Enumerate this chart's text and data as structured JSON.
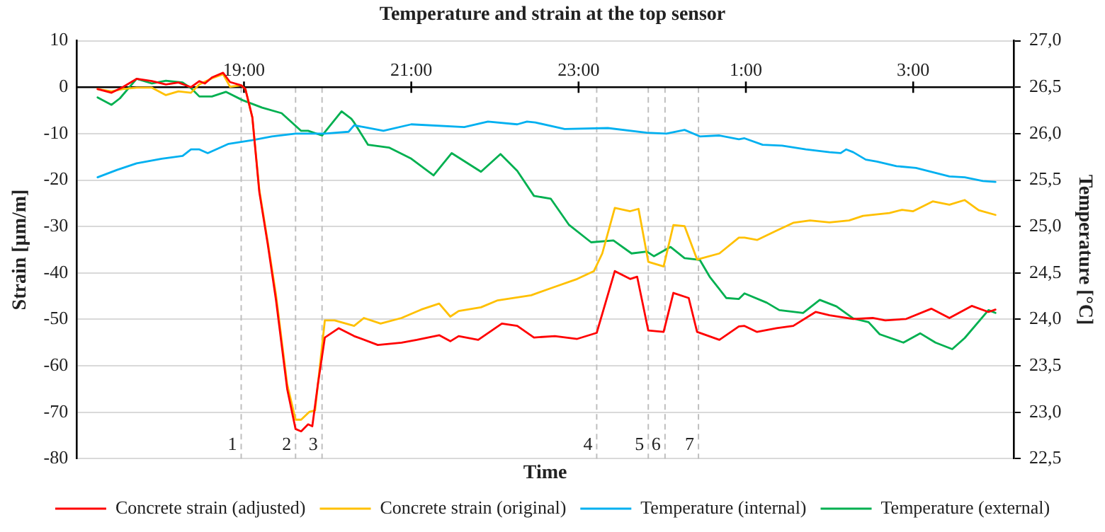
{
  "chart_data": {
    "type": "line",
    "title": "Temperature and strain at the top sensor",
    "xlabel": "Time",
    "ylabel": "Strain [µm/m]",
    "y2label": "Temperature [°C]",
    "xlim": [
      "--01-01T17:00",
      "--01-02T04:12"
    ],
    "xticks": [
      {
        "value": "--01-01T19:00",
        "label": "19:00"
      },
      {
        "value": "--01-01T21:00",
        "label": "21:00"
      },
      {
        "value": "--01-01T23:00",
        "label": "23:00"
      },
      {
        "value": "--01-02T01:00",
        "label": "1:00"
      },
      {
        "value": "--01-02T03:00",
        "label": "3:00"
      }
    ],
    "ylim": [
      -80,
      10
    ],
    "yticks": [
      -80,
      -70,
      -60,
      -50,
      -40,
      -30,
      -20,
      -10,
      0,
      10
    ],
    "y2lim": [
      22.5,
      27.0
    ],
    "y2ticks": [
      {
        "value": 22.5,
        "label": "22,5"
      },
      {
        "value": 23,
        "label": "23,0"
      },
      {
        "value": 23.5,
        "label": "23,5"
      },
      {
        "value": 24,
        "label": "24,0"
      },
      {
        "value": 24.5,
        "label": "24,5"
      },
      {
        "value": 25,
        "label": "25,0"
      },
      {
        "value": 25.5,
        "label": "25,5"
      },
      {
        "value": 26,
        "label": "26,0"
      },
      {
        "value": 26.5,
        "label": "26,5"
      },
      {
        "value": 27,
        "label": "27,0"
      }
    ],
    "grid": "y",
    "legend": "bottom",
    "line_style": "solid",
    "ref_lines": [
      {
        "axis": "x",
        "value": "--01-01T18:58",
        "color": "#bfbfbf",
        "line_style": "dashed"
      },
      {
        "axis": "x",
        "value": "--01-01T19:37",
        "color": "#bfbfbf",
        "line_style": "dashed"
      },
      {
        "axis": "x",
        "value": "--01-01T19:56",
        "color": "#bfbfbf",
        "line_style": "dashed"
      },
      {
        "axis": "x",
        "value": "--01-01T23:13",
        "color": "#bfbfbf",
        "line_style": "dashed"
      },
      {
        "axis": "x",
        "value": "--01-01T23:50",
        "color": "#bfbfbf",
        "line_style": "dashed"
      },
      {
        "axis": "x",
        "value": "--01-02T00:02",
        "color": "#bfbfbf",
        "line_style": "dashed"
      },
      {
        "axis": "x",
        "value": "--01-02T00:26",
        "color": "#bfbfbf",
        "line_style": "dashed"
      }
    ],
    "annotations": [
      {
        "text": "1",
        "x": "--01-01T18:58",
        "y": -77
      },
      {
        "text": "2",
        "x": "--01-01T19:37",
        "y": -77
      },
      {
        "text": "3",
        "x": "--01-01T19:56",
        "y": -77
      },
      {
        "text": "4",
        "x": "--01-01T23:13",
        "y": -77
      },
      {
        "text": "5",
        "x": "--01-01T23:50",
        "y": -77
      },
      {
        "text": "6",
        "x": "--01-02T00:02",
        "y": -77
      },
      {
        "text": "7",
        "x": "--01-02T00:26",
        "y": -77
      }
    ],
    "series": [
      {
        "name": "Concrete strain (adjusted)",
        "color": "#ff0000",
        "x": [
          "--01-01T17:15",
          "--01-01T17:25",
          "--01-01T17:33",
          "--01-01T17:43",
          "--01-01T17:54",
          "--01-01T18:04",
          "--01-01T18:13",
          "--01-01T18:22",
          "--01-01T18:28",
          "--01-01T18:32",
          "--01-01T18:37",
          "--01-01T18:45",
          "--01-01T18:50",
          "--01-01T18:58",
          "--01-01T19:01",
          "--01-01T19:06",
          "--01-01T19:11",
          "--01-01T19:17",
          "--01-01T19:23",
          "--01-01T19:31",
          "--01-01T19:37",
          "--01-01T19:41",
          "--01-01T19:46",
          "--01-01T19:49",
          "--01-01T19:53",
          "--01-01T19:58",
          "--01-01T20:08",
          "--01-01T20:19",
          "--01-01T20:36",
          "--01-01T20:53",
          "--01-01T21:04",
          "--01-01T21:20",
          "--01-01T21:28",
          "--01-01T21:34",
          "--01-01T21:48",
          "--01-01T22:05",
          "--01-01T22:16",
          "--01-01T22:28",
          "--01-01T22:43",
          "--01-01T22:59",
          "--01-01T23:13",
          "--01-01T23:26",
          "--01-01T23:37",
          "--01-01T23:42",
          "--01-01T23:50",
          "--01-02T00:01",
          "--01-02T00:08",
          "--01-02T00:19",
          "--01-02T00:25",
          "--01-02T00:41",
          "--01-02T00:55",
          "--01-02T00:59",
          "--01-02T01:08",
          "--01-02T01:22",
          "--01-02T01:34",
          "--01-02T01:50",
          "--01-02T02:00",
          "--01-02T02:17",
          "--01-02T02:31",
          "--01-02T02:40",
          "--01-02T02:55",
          "--01-02T03:13",
          "--01-02T03:26",
          "--01-02T03:42",
          "--01-02T03:54",
          "--01-02T03:59"
        ],
        "values": [
          -0.4,
          -1.2,
          0,
          1.8,
          1.3,
          0.6,
          1,
          0,
          1.3,
          0.8,
          2.1,
          3.1,
          1.1,
          0.4,
          -0.4,
          -6.5,
          -22.6,
          -33.7,
          -45.9,
          -65,
          -73.6,
          -74.1,
          -72.6,
          -73,
          -64,
          -53.9,
          -51.9,
          -53.6,
          -55.5,
          -55,
          -54.4,
          -53.4,
          -54.7,
          -53.6,
          -54.4,
          -50.9,
          -51.4,
          -53.9,
          -53.6,
          -54.2,
          -52.9,
          -39.6,
          -41.3,
          -40.8,
          -52.4,
          -52.7,
          -44.3,
          -45.4,
          -52.7,
          -54.4,
          -51.5,
          -51.4,
          -52.7,
          -51.9,
          -51.4,
          -48.4,
          -49.1,
          -49.9,
          -49.7,
          -50.2,
          -49.9,
          -47.7,
          -49.7,
          -47.1,
          -48.4,
          -47.9
        ]
      },
      {
        "name": "Concrete strain (original)",
        "color": "#ffc000",
        "x": [
          "--01-01T17:15",
          "--01-01T17:25",
          "--01-01T17:33",
          "--01-01T17:43",
          "--01-01T17:54",
          "--01-01T18:04",
          "--01-01T18:13",
          "--01-01T18:22",
          "--01-01T18:28",
          "--01-01T18:37",
          "--01-01T18:45",
          "--01-01T18:50",
          "--01-01T18:58",
          "--01-01T19:01",
          "--01-01T19:06",
          "--01-01T19:11",
          "--01-01T19:17",
          "--01-01T19:23",
          "--01-01T19:31",
          "--01-01T19:37",
          "--01-01T19:41",
          "--01-01T19:47",
          "--01-01T19:51",
          "--01-01T19:58",
          "--01-01T20:05",
          "--01-01T20:19",
          "--01-01T20:26",
          "--01-01T20:38",
          "--01-01T20:53",
          "--01-01T21:07",
          "--01-01T21:20",
          "--01-01T21:28",
          "--01-01T21:34",
          "--01-01T21:50",
          "--01-01T22:02",
          "--01-01T22:26",
          "--01-01T22:40",
          "--01-01T22:59",
          "--01-01T23:11",
          "--01-01T23:17",
          "--01-01T23:26",
          "--01-01T23:37",
          "--01-01T23:43",
          "--01-01T23:50",
          "--01-02T00:01",
          "--01-02T00:08",
          "--01-02T00:16",
          "--01-02T00:25",
          "--01-02T00:41",
          "--01-02T00:55",
          "--01-02T00:59",
          "--01-02T01:08",
          "--01-02T01:22",
          "--01-02T01:34",
          "--01-02T01:46",
          "--01-02T02:00",
          "--01-02T02:14",
          "--01-02T02:24",
          "--01-02T02:43",
          "--01-02T02:52",
          "--01-02T03:00",
          "--01-02T03:14",
          "--01-02T03:26",
          "--01-02T03:37",
          "--01-02T03:47",
          "--01-02T03:59"
        ],
        "values": [
          -0.4,
          -0.9,
          -0.4,
          -0.1,
          -0.1,
          -1.7,
          -0.9,
          -1.2,
          0.6,
          1.9,
          2.8,
          0.1,
          0.4,
          -0.4,
          -6.5,
          -22.1,
          -33.2,
          -44.8,
          -64,
          -71.6,
          -71.6,
          -69.9,
          -69.6,
          -50.2,
          -50.2,
          -51.4,
          -49.7,
          -50.9,
          -49.7,
          -47.9,
          -46.6,
          -49.4,
          -48.2,
          -47.4,
          -45.9,
          -44.8,
          -43.3,
          -41.3,
          -39.6,
          -35.8,
          -26,
          -26.7,
          -26.2,
          -37.6,
          -38.6,
          -29.7,
          -29.9,
          -37.1,
          -35.8,
          -32.4,
          -32.4,
          -32.9,
          -30.9,
          -29.2,
          -28.7,
          -29.1,
          -28.7,
          -27.7,
          -27.1,
          -26.4,
          -26.7,
          -24.6,
          -25.3,
          -24.3,
          -26.5,
          -27.5
        ]
      },
      {
        "name": "Temperature (internal)",
        "color": "#00b0f0",
        "axis": "y2",
        "x": [
          "--01-01T17:15",
          "--01-01T17:29",
          "--01-01T17:43",
          "--01-01T18:01",
          "--01-01T18:16",
          "--01-01T18:22",
          "--01-01T18:28",
          "--01-01T18:34",
          "--01-01T18:49",
          "--01-01T19:06",
          "--01-01T19:20",
          "--01-01T19:37",
          "--01-01T19:58",
          "--01-01T20:15",
          "--01-01T20:19",
          "--01-01T20:26",
          "--01-01T20:40",
          "--01-01T21:00",
          "--01-01T21:38",
          "--01-01T21:55",
          "--01-01T22:16",
          "--01-01T22:23",
          "--01-01T22:29",
          "--01-01T22:50",
          "--01-01T23:21",
          "--01-01T23:49",
          "--01-02T00:03",
          "--01-02T00:16",
          "--01-02T00:27",
          "--01-02T00:41",
          "--01-02T00:55",
          "--01-02T00:59",
          "--01-02T01:12",
          "--01-02T01:26",
          "--01-02T01:43",
          "--01-02T02:00",
          "--01-02T02:08",
          "--01-02T02:12",
          "--01-02T02:17",
          "--01-02T02:26",
          "--01-02T02:34",
          "--01-02T02:48",
          "--01-02T03:02",
          "--01-02T03:26",
          "--01-02T03:37",
          "--01-02T03:50",
          "--01-02T03:59"
        ],
        "values": [
          25.53,
          25.61,
          25.68,
          25.73,
          25.76,
          25.83,
          25.83,
          25.79,
          25.89,
          25.93,
          25.97,
          26.0,
          26.0,
          26.02,
          26.09,
          26.07,
          26.03,
          26.1,
          26.07,
          26.13,
          26.1,
          26.13,
          26.12,
          26.05,
          26.06,
          26.01,
          26.0,
          26.04,
          25.97,
          25.98,
          25.94,
          25.95,
          25.88,
          25.87,
          25.83,
          25.8,
          25.79,
          25.83,
          25.8,
          25.72,
          25.7,
          25.65,
          25.63,
          25.54,
          25.53,
          25.49,
          25.48
        ]
      },
      {
        "name": "Temperature (external)",
        "color": "#00b050",
        "axis": "y2",
        "x": [
          "--01-01T17:15",
          "--01-01T17:25",
          "--01-01T17:31",
          "--01-01T17:43",
          "--01-01T17:54",
          "--01-01T18:04",
          "--01-01T18:16",
          "--01-01T18:22",
          "--01-01T18:28",
          "--01-01T18:37",
          "--01-01T18:47",
          "--01-01T18:59",
          "--01-01T19:13",
          "--01-01T19:27",
          "--01-01T19:41",
          "--01-01T19:46",
          "--01-01T19:56",
          "--01-01T20:10",
          "--01-01T20:17",
          "--01-01T20:19",
          "--01-01T20:29",
          "--01-01T20:44",
          "--01-01T21:00",
          "--01-01T21:16",
          "--01-01T21:29",
          "--01-01T21:50",
          "--01-01T22:04",
          "--01-01T22:16",
          "--01-01T22:28",
          "--01-01T22:40",
          "--01-01T22:53",
          "--01-01T23:09",
          "--01-01T23:25",
          "--01-01T23:38",
          "--01-01T23:49",
          "--01-01T23:54",
          "--01-02T00:06",
          "--01-02T00:16",
          "--01-02T00:27",
          "--01-02T00:34",
          "--01-02T00:46",
          "--01-02T00:55",
          "--01-02T00:59",
          "--01-02T01:15",
          "--01-02T01:24",
          "--01-02T01:41",
          "--01-02T01:53",
          "--01-02T02:05",
          "--01-02T02:17",
          "--01-02T02:28",
          "--01-02T02:36",
          "--01-02T02:53",
          "--01-02T03:05",
          "--01-02T03:16",
          "--01-02T03:28",
          "--01-02T03:37",
          "--01-02T03:54",
          "--01-02T03:59"
        ],
        "values": [
          26.39,
          26.31,
          26.38,
          26.59,
          26.54,
          26.57,
          26.55,
          26.49,
          26.4,
          26.4,
          26.45,
          26.36,
          26.28,
          26.22,
          26.03,
          26.03,
          25.98,
          26.24,
          26.16,
          26.12,
          25.88,
          25.85,
          25.73,
          25.55,
          25.79,
          25.59,
          25.78,
          25.6,
          25.33,
          25.3,
          25.02,
          24.83,
          24.85,
          24.71,
          24.73,
          24.68,
          24.78,
          24.66,
          24.64,
          24.46,
          24.23,
          24.22,
          24.28,
          24.18,
          24.1,
          24.07,
          24.21,
          24.14,
          24.01,
          23.97,
          23.84,
          23.75,
          23.85,
          23.75,
          23.68,
          23.8,
          24.1,
          24.07
        ]
      }
    ]
  }
}
